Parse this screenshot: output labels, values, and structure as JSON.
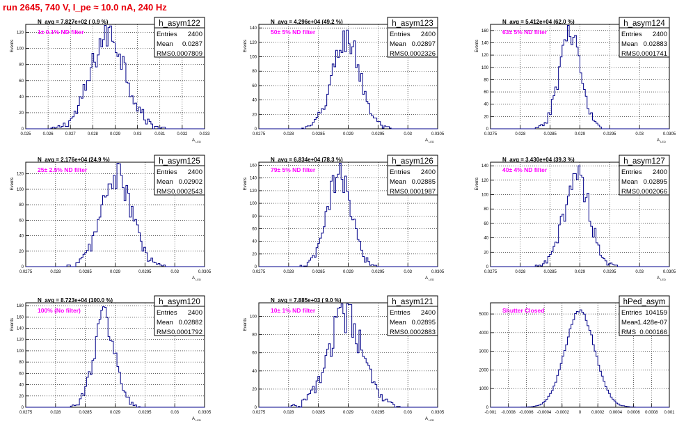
{
  "page": {
    "run_title": "run 2645,   740 V, I_pe ≈ 10.0 nA, 240 Hz",
    "colors": {
      "histogram": "#000088",
      "annotation": "#ff00ff",
      "title": "#e8000b",
      "grid": "#000000"
    }
  },
  "chart_data": [
    {
      "type": "histogram",
      "name": "h_asym122",
      "stats": {
        "entries": "2400",
        "mean": "0.0287",
        "rms": "0.0007809"
      },
      "navg": "N_avg = 7.827e+02 ( 0.9 %)",
      "filter": "1± 0.1% ND filter",
      "xlabel": "A",
      "xlabel_sub": "LED",
      "ylabel": "Events",
      "xlim": [
        0.025,
        0.033
      ],
      "ylim": [
        0,
        130
      ],
      "mean": 0.0287,
      "sigma": 0.00078,
      "peak": 118,
      "bins": 100,
      "xticks": [
        0.025,
        0.026,
        0.027,
        0.028,
        0.029,
        0.03,
        0.031,
        0.032,
        0.033
      ],
      "xtick_labels": [
        "0.025",
        "0.026",
        "0.027",
        "0.028",
        "0.029",
        "0.03",
        "0.031",
        "0.032",
        "0.033"
      ],
      "yticks": [
        0,
        20,
        40,
        60,
        80,
        100,
        120
      ],
      "ytick_labels": [
        "0",
        "20",
        "40",
        "60",
        "80",
        "100",
        "120"
      ]
    },
    {
      "type": "histogram",
      "name": "h_asym123",
      "stats": {
        "entries": "2400",
        "mean": "0.02897",
        "rms": "0.0002326"
      },
      "navg": "N_avg = 4.296e+04 (49.2 %)",
      "filter": "50± 5% ND filter",
      "xlabel": "A",
      "xlabel_sub": "LED",
      "ylabel": "Events",
      "xlim": [
        0.0275,
        0.0305
      ],
      "ylim": [
        0,
        145
      ],
      "mean": 0.02897,
      "sigma": 0.00023,
      "peak": 125,
      "bins": 100,
      "xticks": [
        0.0275,
        0.028,
        0.0285,
        0.029,
        0.0295,
        0.03,
        0.0305
      ],
      "xtick_labels": [
        "0.0275",
        "0.028",
        "0.0285",
        "0.029",
        "0.0295",
        "0.03",
        "0.0305"
      ],
      "yticks": [
        0,
        20,
        40,
        60,
        80,
        100,
        120,
        140
      ],
      "ytick_labels": [
        "0",
        "20",
        "40",
        "60",
        "80",
        "100",
        "120",
        "140"
      ]
    },
    {
      "type": "histogram",
      "name": "h_asym124",
      "stats": {
        "entries": "2400",
        "mean": "0.02883",
        "rms": "0.0001741"
      },
      "navg": "N_avg = 5.412e+04 (62.0 %)",
      "filter": "63± 5% ND filter",
      "xlabel": "A",
      "xlabel_sub": "LED",
      "ylabel": "Events",
      "xlim": [
        0.0275,
        0.0305
      ],
      "ylim": [
        0,
        170
      ],
      "mean": 0.02883,
      "sigma": 0.000174,
      "peak": 162,
      "bins": 100,
      "xticks": [
        0.0275,
        0.028,
        0.0285,
        0.029,
        0.0295,
        0.03,
        0.0305
      ],
      "xtick_labels": [
        "0.0275",
        "0.028",
        "0.0285",
        "0.029",
        "0.0295",
        "0.03",
        "0.0305"
      ],
      "yticks": [
        0,
        20,
        40,
        60,
        80,
        100,
        120,
        140,
        160
      ],
      "ytick_labels": [
        "0",
        "20",
        "40",
        "60",
        "80",
        "100",
        "120",
        "140",
        "160"
      ]
    },
    {
      "type": "histogram",
      "name": "h_asym125",
      "stats": {
        "entries": "2400",
        "mean": "0.02902",
        "rms": "0.0002543"
      },
      "navg": "N_avg = 2.176e+04 (24.9 %)",
      "filter": "25± 2.5% ND filter",
      "xlabel": "A",
      "xlabel_sub": "LED",
      "ylabel": "Events",
      "xlim": [
        0.0275,
        0.0305
      ],
      "ylim": [
        0,
        135
      ],
      "mean": 0.02902,
      "sigma": 0.000254,
      "peak": 118,
      "bins": 100,
      "xticks": [
        0.0275,
        0.028,
        0.0285,
        0.029,
        0.0295,
        0.03,
        0.0305
      ],
      "xtick_labels": [
        "0.0275",
        "0.028",
        "0.0285",
        "0.029",
        "0.0295",
        "0.03",
        "0.0305"
      ],
      "yticks": [
        0,
        20,
        40,
        60,
        80,
        100,
        120
      ],
      "ytick_labels": [
        "0",
        "20",
        "40",
        "60",
        "80",
        "100",
        "120"
      ]
    },
    {
      "type": "histogram",
      "name": "h_asym126",
      "stats": {
        "entries": "2400",
        "mean": "0.02885",
        "rms": "0.0001987"
      },
      "navg": "N_avg = 6.834e+04 (78.3 %)",
      "filter": "79± 5% ND filter",
      "xlabel": "A",
      "xlabel_sub": "LED",
      "ylabel": "Events",
      "xlim": [
        0.0275,
        0.0305
      ],
      "ylim": [
        0,
        165
      ],
      "mean": 0.02885,
      "sigma": 0.000199,
      "peak": 145,
      "bins": 100,
      "xticks": [
        0.0275,
        0.028,
        0.0285,
        0.029,
        0.0295,
        0.03,
        0.0305
      ],
      "xtick_labels": [
        "0.0275",
        "0.028",
        "0.0285",
        "0.029",
        "0.0295",
        "0.03",
        "0.0305"
      ],
      "yticks": [
        0,
        20,
        40,
        60,
        80,
        100,
        120,
        140,
        160
      ],
      "ytick_labels": [
        "0",
        "20",
        "40",
        "60",
        "80",
        "100",
        "120",
        "140",
        "160"
      ]
    },
    {
      "type": "histogram",
      "name": "h_asym127",
      "stats": {
        "entries": "2400",
        "mean": "0.02895",
        "rms": "0.0002066"
      },
      "navg": "N_avg = 3.430e+04 (39.3 %)",
      "filter": "40± 4% ND filter",
      "xlabel": "A",
      "xlabel_sub": "LED",
      "ylabel": "Events",
      "xlim": [
        0.0275,
        0.0305
      ],
      "ylim": [
        0,
        145
      ],
      "mean": 0.02895,
      "sigma": 0.000207,
      "peak": 130,
      "bins": 100,
      "xticks": [
        0.0275,
        0.028,
        0.0285,
        0.029,
        0.0295,
        0.03,
        0.0305
      ],
      "xtick_labels": [
        "0.0275",
        "0.028",
        "0.0285",
        "0.029",
        "0.0295",
        "0.03",
        "0.0305"
      ],
      "yticks": [
        0,
        20,
        40,
        60,
        80,
        100,
        120,
        140
      ],
      "ytick_labels": [
        "0",
        "20",
        "40",
        "60",
        "80",
        "100",
        "120",
        "140"
      ]
    },
    {
      "type": "histogram",
      "name": "h_asym120",
      "stats": {
        "entries": "2400",
        "mean": "0.02882",
        "rms": "0.0001792"
      },
      "navg": "N_avg = 8.723e+04 (100.0 %)",
      "filter": "100% (No filter)",
      "xlabel": "A",
      "xlabel_sub": "LED",
      "ylabel": "Events",
      "xlim": [
        0.0275,
        0.0305
      ],
      "ylim": [
        0,
        185
      ],
      "mean": 0.02882,
      "sigma": 0.000179,
      "peak": 158,
      "bins": 100,
      "xticks": [
        0.0275,
        0.028,
        0.0285,
        0.029,
        0.0295,
        0.03,
        0.0305
      ],
      "xtick_labels": [
        "0.0275",
        "0.028",
        "0.0285",
        "0.029",
        "0.0295",
        "0.03",
        "0.0305"
      ],
      "yticks": [
        0,
        20,
        40,
        60,
        80,
        100,
        120,
        140,
        160,
        180
      ],
      "ytick_labels": [
        "0",
        "20",
        "40",
        "60",
        "80",
        "100",
        "120",
        "140",
        "160",
        "180"
      ]
    },
    {
      "type": "histogram",
      "name": "h_asym121",
      "stats": {
        "entries": "2400",
        "mean": "0.02895",
        "rms": "0.0002883"
      },
      "navg": "N_avg = 7.885e+03 ( 9.0 %)",
      "filter": "10± 1% ND filter",
      "xlabel": "A",
      "xlabel_sub": "LED",
      "ylabel": "Events",
      "xlim": [
        0.0275,
        0.0305
      ],
      "ylim": [
        0,
        115
      ],
      "mean": 0.02895,
      "sigma": 0.000288,
      "peak": 100,
      "bins": 100,
      "xticks": [
        0.0275,
        0.028,
        0.0285,
        0.029,
        0.0295,
        0.03,
        0.0305
      ],
      "xtick_labels": [
        "0.0275",
        "0.028",
        "0.0285",
        "0.029",
        "0.0295",
        "0.03",
        "0.0305"
      ],
      "yticks": [
        0,
        20,
        40,
        60,
        80,
        100
      ],
      "ytick_labels": [
        "0",
        "20",
        "40",
        "60",
        "80",
        "100"
      ]
    },
    {
      "type": "histogram",
      "name": "hPed_asym",
      "stats": {
        "entries": "104159",
        "mean": "-1.428e-07",
        "rms": "0.000166"
      },
      "navg": "",
      "filter": "Shutter Closed",
      "xlabel": "",
      "xlabel_sub": "",
      "ylabel": "",
      "xlim": [
        -0.001,
        0.001
      ],
      "ylim": [
        0,
        5600
      ],
      "mean": 0.0,
      "sigma": 0.000166,
      "peak": 5150,
      "bins": 100,
      "xticks": [
        -0.001,
        -0.0008,
        -0.0006,
        -0.0004,
        -0.0002,
        0,
        0.0002,
        0.0004,
        0.0006,
        0.0008,
        0.001
      ],
      "xtick_labels": [
        "-0.001",
        "-0.0008",
        "-0.0006",
        "-0.0004",
        "-0.0002",
        "0",
        "0.0002",
        "0.0004",
        "0.0006",
        "0.0008",
        "0.001"
      ],
      "yticks": [
        0,
        1000,
        2000,
        3000,
        4000,
        5000
      ],
      "ytick_labels": [
        "0",
        "1000",
        "2000",
        "3000",
        "4000",
        "5000"
      ]
    }
  ]
}
